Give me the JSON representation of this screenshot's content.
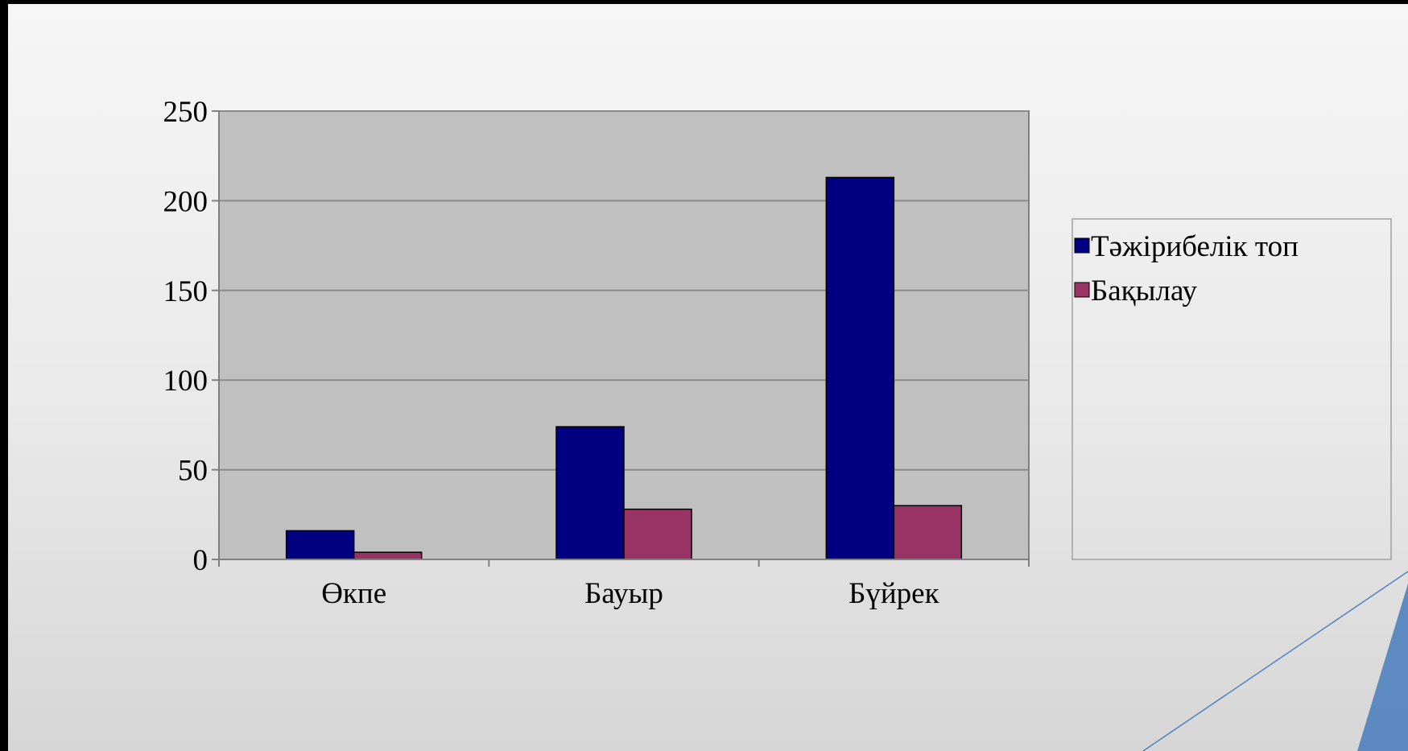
{
  "chart_data": {
    "type": "bar",
    "categories": [
      "Өкпе",
      "Бауыр",
      "Бүйрек"
    ],
    "series": [
      {
        "name": "Тәжірибелік топ",
        "values": [
          16,
          74,
          213
        ],
        "color": "#000080"
      },
      {
        "name": "Бақылау",
        "values": [
          4,
          28,
          30
        ],
        "color": "#993366"
      }
    ],
    "ylim": [
      0,
      250
    ],
    "yticks": [
      0,
      50,
      100,
      150,
      200,
      250
    ],
    "ytick_labels": [
      "0",
      "50",
      "100",
      "150",
      "200",
      "250"
    ],
    "grid": true,
    "legend_position": "right",
    "title": "",
    "xlabel": "",
    "ylabel": "",
    "plot_background": "#c0c0c0"
  }
}
